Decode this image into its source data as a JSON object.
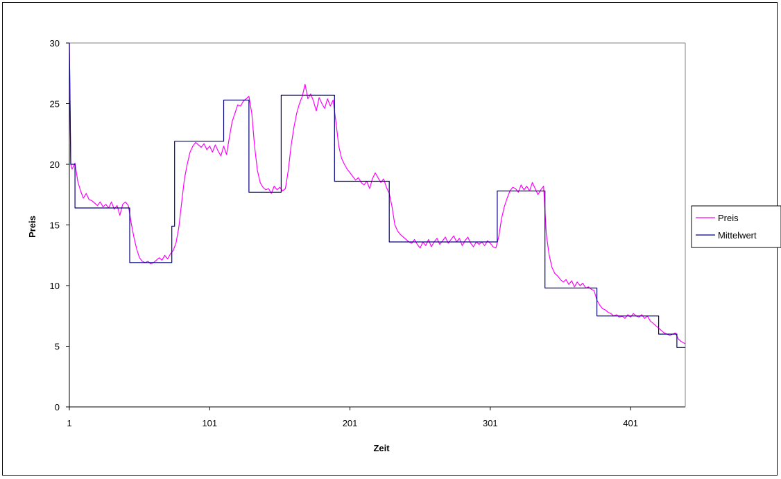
{
  "chart_data": {
    "type": "line",
    "xlabel": "Zeit",
    "ylabel": "Preis",
    "xlim": [
      1,
      440
    ],
    "ylim": [
      0,
      30
    ],
    "x_tick_labels": [
      "1",
      "101",
      "201",
      "301",
      "401"
    ],
    "x_ticks": [
      1,
      101,
      201,
      301,
      401
    ],
    "y_ticks": [
      0,
      5,
      10,
      15,
      20,
      25,
      30
    ],
    "y_tick_labels": [
      "0",
      "5",
      "10",
      "15",
      "20",
      "25",
      "30"
    ],
    "grid": false,
    "legend_position": "right",
    "series": [
      {
        "name": "Preis",
        "color": "#ff00ff",
        "points": [
          [
            1,
            30.0
          ],
          [
            2,
            20.0
          ],
          [
            3,
            19.6
          ],
          [
            5,
            20.1
          ],
          [
            7,
            18.6
          ],
          [
            9,
            17.8
          ],
          [
            11,
            17.2
          ],
          [
            13,
            17.6
          ],
          [
            15,
            17.1
          ],
          [
            17,
            17.0
          ],
          [
            19,
            16.8
          ],
          [
            21,
            16.6
          ],
          [
            23,
            16.9
          ],
          [
            25,
            16.5
          ],
          [
            27,
            16.7
          ],
          [
            29,
            16.4
          ],
          [
            31,
            16.9
          ],
          [
            33,
            16.3
          ],
          [
            35,
            16.6
          ],
          [
            37,
            15.8
          ],
          [
            39,
            16.7
          ],
          [
            41,
            16.9
          ],
          [
            43,
            16.6
          ],
          [
            45,
            15.2
          ],
          [
            47,
            14.0
          ],
          [
            49,
            13.0
          ],
          [
            51,
            12.3
          ],
          [
            53,
            12.0
          ],
          [
            55,
            11.9
          ],
          [
            57,
            12.0
          ],
          [
            59,
            11.8
          ],
          [
            61,
            11.9
          ],
          [
            63,
            12.1
          ],
          [
            65,
            12.3
          ],
          [
            67,
            12.1
          ],
          [
            69,
            12.5
          ],
          [
            71,
            12.2
          ],
          [
            73,
            12.6
          ],
          [
            75,
            12.9
          ],
          [
            77,
            13.5
          ],
          [
            79,
            14.8
          ],
          [
            81,
            16.8
          ],
          [
            83,
            18.8
          ],
          [
            85,
            20.0
          ],
          [
            87,
            21.0
          ],
          [
            89,
            21.5
          ],
          [
            91,
            21.8
          ],
          [
            93,
            21.6
          ],
          [
            95,
            21.4
          ],
          [
            97,
            21.7
          ],
          [
            99,
            21.2
          ],
          [
            101,
            21.5
          ],
          [
            103,
            21.0
          ],
          [
            105,
            21.6
          ],
          [
            107,
            21.1
          ],
          [
            109,
            20.7
          ],
          [
            111,
            21.5
          ],
          [
            113,
            20.8
          ],
          [
            115,
            22.2
          ],
          [
            117,
            23.5
          ],
          [
            119,
            24.2
          ],
          [
            121,
            24.9
          ],
          [
            123,
            24.8
          ],
          [
            125,
            25.2
          ],
          [
            127,
            25.4
          ],
          [
            129,
            25.6
          ],
          [
            131,
            24.2
          ],
          [
            133,
            21.5
          ],
          [
            135,
            19.5
          ],
          [
            137,
            18.5
          ],
          [
            139,
            18.1
          ],
          [
            141,
            17.9
          ],
          [
            143,
            18.0
          ],
          [
            145,
            17.6
          ],
          [
            147,
            18.2
          ],
          [
            149,
            17.9
          ],
          [
            151,
            18.1
          ],
          [
            153,
            17.8
          ],
          [
            155,
            18.0
          ],
          [
            157,
            19.5
          ],
          [
            159,
            21.5
          ],
          [
            161,
            23.0
          ],
          [
            163,
            24.2
          ],
          [
            165,
            25.0
          ],
          [
            167,
            25.6
          ],
          [
            169,
            26.6
          ],
          [
            171,
            25.4
          ],
          [
            173,
            25.8
          ],
          [
            175,
            25.2
          ],
          [
            177,
            24.4
          ],
          [
            179,
            25.5
          ],
          [
            181,
            25.0
          ],
          [
            183,
            24.6
          ],
          [
            185,
            25.4
          ],
          [
            187,
            24.8
          ],
          [
            189,
            25.3
          ],
          [
            191,
            23.5
          ],
          [
            193,
            21.5
          ],
          [
            195,
            20.5
          ],
          [
            197,
            20.0
          ],
          [
            199,
            19.6
          ],
          [
            201,
            19.3
          ],
          [
            203,
            19.0
          ],
          [
            205,
            18.7
          ],
          [
            207,
            18.9
          ],
          [
            209,
            18.5
          ],
          [
            211,
            18.3
          ],
          [
            213,
            18.6
          ],
          [
            215,
            18.0
          ],
          [
            217,
            18.8
          ],
          [
            219,
            19.3
          ],
          [
            221,
            18.9
          ],
          [
            223,
            18.5
          ],
          [
            225,
            18.8
          ],
          [
            227,
            18.1
          ],
          [
            229,
            17.6
          ],
          [
            231,
            16.5
          ],
          [
            233,
            15.0
          ],
          [
            235,
            14.5
          ],
          [
            237,
            14.2
          ],
          [
            239,
            14.0
          ],
          [
            241,
            13.8
          ],
          [
            243,
            13.6
          ],
          [
            245,
            13.5
          ],
          [
            247,
            13.8
          ],
          [
            249,
            13.4
          ],
          [
            251,
            13.1
          ],
          [
            253,
            13.6
          ],
          [
            255,
            13.3
          ],
          [
            257,
            13.8
          ],
          [
            259,
            13.2
          ],
          [
            261,
            13.6
          ],
          [
            263,
            13.9
          ],
          [
            265,
            13.4
          ],
          [
            267,
            13.7
          ],
          [
            269,
            14.0
          ],
          [
            271,
            13.5
          ],
          [
            273,
            13.8
          ],
          [
            275,
            14.1
          ],
          [
            277,
            13.6
          ],
          [
            279,
            13.9
          ],
          [
            281,
            13.3
          ],
          [
            283,
            13.7
          ],
          [
            285,
            14.0
          ],
          [
            287,
            13.5
          ],
          [
            289,
            13.2
          ],
          [
            291,
            13.6
          ],
          [
            293,
            13.4
          ],
          [
            295,
            13.6
          ],
          [
            297,
            13.3
          ],
          [
            299,
            13.7
          ],
          [
            301,
            13.5
          ],
          [
            303,
            13.2
          ],
          [
            305,
            13.1
          ],
          [
            307,
            14.0
          ],
          [
            309,
            15.5
          ],
          [
            311,
            16.5
          ],
          [
            313,
            17.2
          ],
          [
            315,
            17.8
          ],
          [
            317,
            18.1
          ],
          [
            319,
            18.0
          ],
          [
            321,
            17.7
          ],
          [
            323,
            18.3
          ],
          [
            325,
            17.9
          ],
          [
            327,
            18.2
          ],
          [
            329,
            17.8
          ],
          [
            331,
            18.5
          ],
          [
            333,
            18.0
          ],
          [
            335,
            17.5
          ],
          [
            337,
            17.9
          ],
          [
            339,
            18.2
          ],
          [
            341,
            14.2
          ],
          [
            343,
            12.5
          ],
          [
            345,
            11.5
          ],
          [
            347,
            11.0
          ],
          [
            349,
            10.8
          ],
          [
            351,
            10.5
          ],
          [
            353,
            10.3
          ],
          [
            355,
            10.5
          ],
          [
            357,
            10.1
          ],
          [
            359,
            10.4
          ],
          [
            361,
            9.9
          ],
          [
            363,
            10.3
          ],
          [
            365,
            10.0
          ],
          [
            367,
            10.2
          ],
          [
            369,
            9.8
          ],
          [
            371,
            9.9
          ],
          [
            373,
            9.7
          ],
          [
            375,
            9.6
          ],
          [
            377,
            8.8
          ],
          [
            379,
            8.4
          ],
          [
            381,
            8.1
          ],
          [
            383,
            8.0
          ],
          [
            385,
            7.8
          ],
          [
            387,
            7.7
          ],
          [
            389,
            7.5
          ],
          [
            391,
            7.6
          ],
          [
            393,
            7.4
          ],
          [
            395,
            7.5
          ],
          [
            397,
            7.3
          ],
          [
            399,
            7.6
          ],
          [
            401,
            7.4
          ],
          [
            403,
            7.7
          ],
          [
            405,
            7.5
          ],
          [
            407,
            7.4
          ],
          [
            409,
            7.6
          ],
          [
            411,
            7.3
          ],
          [
            413,
            7.5
          ],
          [
            415,
            7.1
          ],
          [
            417,
            6.9
          ],
          [
            419,
            6.7
          ],
          [
            421,
            6.5
          ],
          [
            423,
            6.3
          ],
          [
            425,
            6.1
          ],
          [
            427,
            6.0
          ],
          [
            429,
            5.9
          ],
          [
            431,
            6.0
          ],
          [
            433,
            6.1
          ],
          [
            435,
            5.6
          ],
          [
            437,
            5.4
          ],
          [
            440,
            5.2
          ]
        ]
      },
      {
        "name": "Mittelwert",
        "color": "#000080",
        "points": [
          [
            1,
            30.0
          ],
          [
            2,
            20.0
          ],
          [
            5,
            20.0
          ],
          [
            5,
            16.4
          ],
          [
            44,
            16.4
          ],
          [
            44,
            11.9
          ],
          [
            74,
            11.9
          ],
          [
            74,
            14.9
          ],
          [
            76,
            14.9
          ],
          [
            76,
            21.9
          ],
          [
            111,
            21.9
          ],
          [
            111,
            25.3
          ],
          [
            129,
            25.3
          ],
          [
            129,
            17.7
          ],
          [
            152,
            17.7
          ],
          [
            152,
            25.7
          ],
          [
            190,
            25.7
          ],
          [
            190,
            18.6
          ],
          [
            229,
            18.6
          ],
          [
            229,
            13.6
          ],
          [
            306,
            13.6
          ],
          [
            306,
            17.8
          ],
          [
            340,
            17.8
          ],
          [
            340,
            9.8
          ],
          [
            377,
            9.8
          ],
          [
            377,
            7.5
          ],
          [
            421,
            7.5
          ],
          [
            421,
            6.0
          ],
          [
            434,
            6.0
          ],
          [
            434,
            4.9
          ],
          [
            440,
            4.9
          ]
        ]
      }
    ]
  }
}
